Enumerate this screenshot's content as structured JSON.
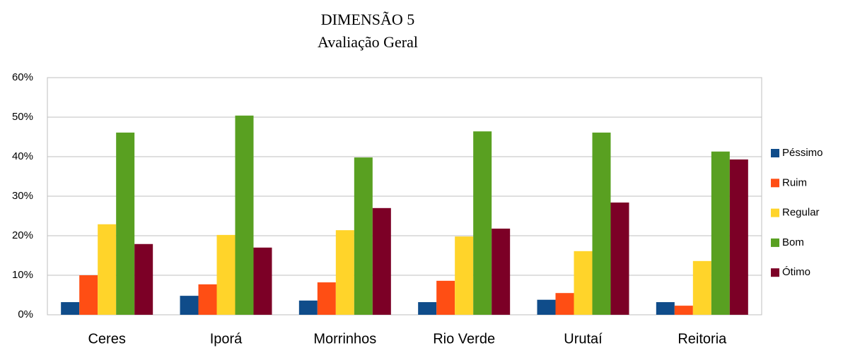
{
  "chart_data": {
    "type": "bar",
    "title": "DIMENSÃO 5",
    "subtitle": "Avaliação Geral",
    "categories": [
      "Ceres",
      "Iporá",
      "Morrinhos",
      "Rio Verde",
      "Urutaí",
      "Reitoria"
    ],
    "series": [
      {
        "name": "Péssimo",
        "color": "#0f4c8a",
        "values": [
          3.2,
          4.8,
          3.6,
          3.2,
          3.8,
          3.2
        ]
      },
      {
        "name": "Ruim",
        "color": "#ff4e14",
        "values": [
          10.0,
          7.7,
          8.2,
          8.6,
          5.5,
          2.3
        ]
      },
      {
        "name": "Regular",
        "color": "#ffd42a",
        "values": [
          22.9,
          20.2,
          21.4,
          19.8,
          16.1,
          13.6
        ]
      },
      {
        "name": "Bom",
        "color": "#59a021",
        "values": [
          46.1,
          50.4,
          39.8,
          46.4,
          46.1,
          41.3
        ]
      },
      {
        "name": "Ótimo",
        "color": "#7c0026",
        "values": [
          17.9,
          17.0,
          27.0,
          21.8,
          28.4,
          39.3
        ]
      }
    ],
    "ylim": [
      0,
      60
    ],
    "yticks": [
      {
        "value": 0,
        "label": "0%"
      },
      {
        "value": 10,
        "label": "10%"
      },
      {
        "value": 20,
        "label": "20%"
      },
      {
        "value": 30,
        "label": "30%"
      },
      {
        "value": 40,
        "label": "40%"
      },
      {
        "value": 50,
        "label": "50%"
      },
      {
        "value": 60,
        "label": "60%"
      }
    ],
    "grid": true,
    "legend": "right"
  }
}
